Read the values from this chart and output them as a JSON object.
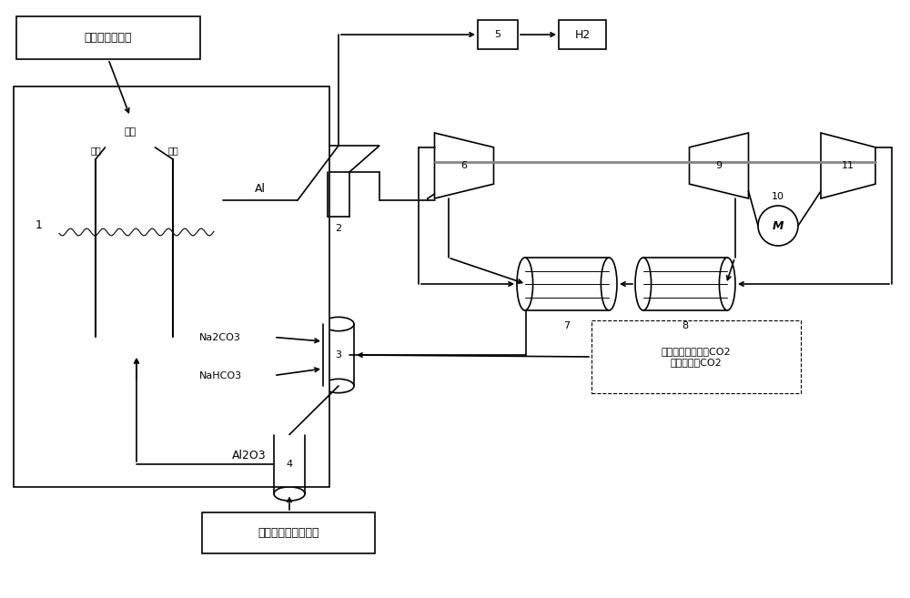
{
  "bg_color": "#ffffff",
  "line_color": "#000000",
  "gray_color": "#888888",
  "fig_width": 10.0,
  "fig_height": 6.57,
  "labels": {
    "renewable_gen": "可再生能源发电",
    "power_supply": "电源",
    "anode": "阳极",
    "cathode": "阴极",
    "component1": "1",
    "Al_label": "Al",
    "component2": "2",
    "component3": "3",
    "component4": "4",
    "component5": "5",
    "component6": "6",
    "component7": "7",
    "component8": "8",
    "component9": "9",
    "component10": "10",
    "component11": "11",
    "H2_label": "H2",
    "Na2CO3": "Na2CO3",
    "NaHCO3": "NaHCO3",
    "Al2O3": "Al2O3",
    "renewable_heat": "可再生能源作为热源",
    "co2_source": "来自燃煤电站烟气CO2\n捕集装置的CO2"
  }
}
